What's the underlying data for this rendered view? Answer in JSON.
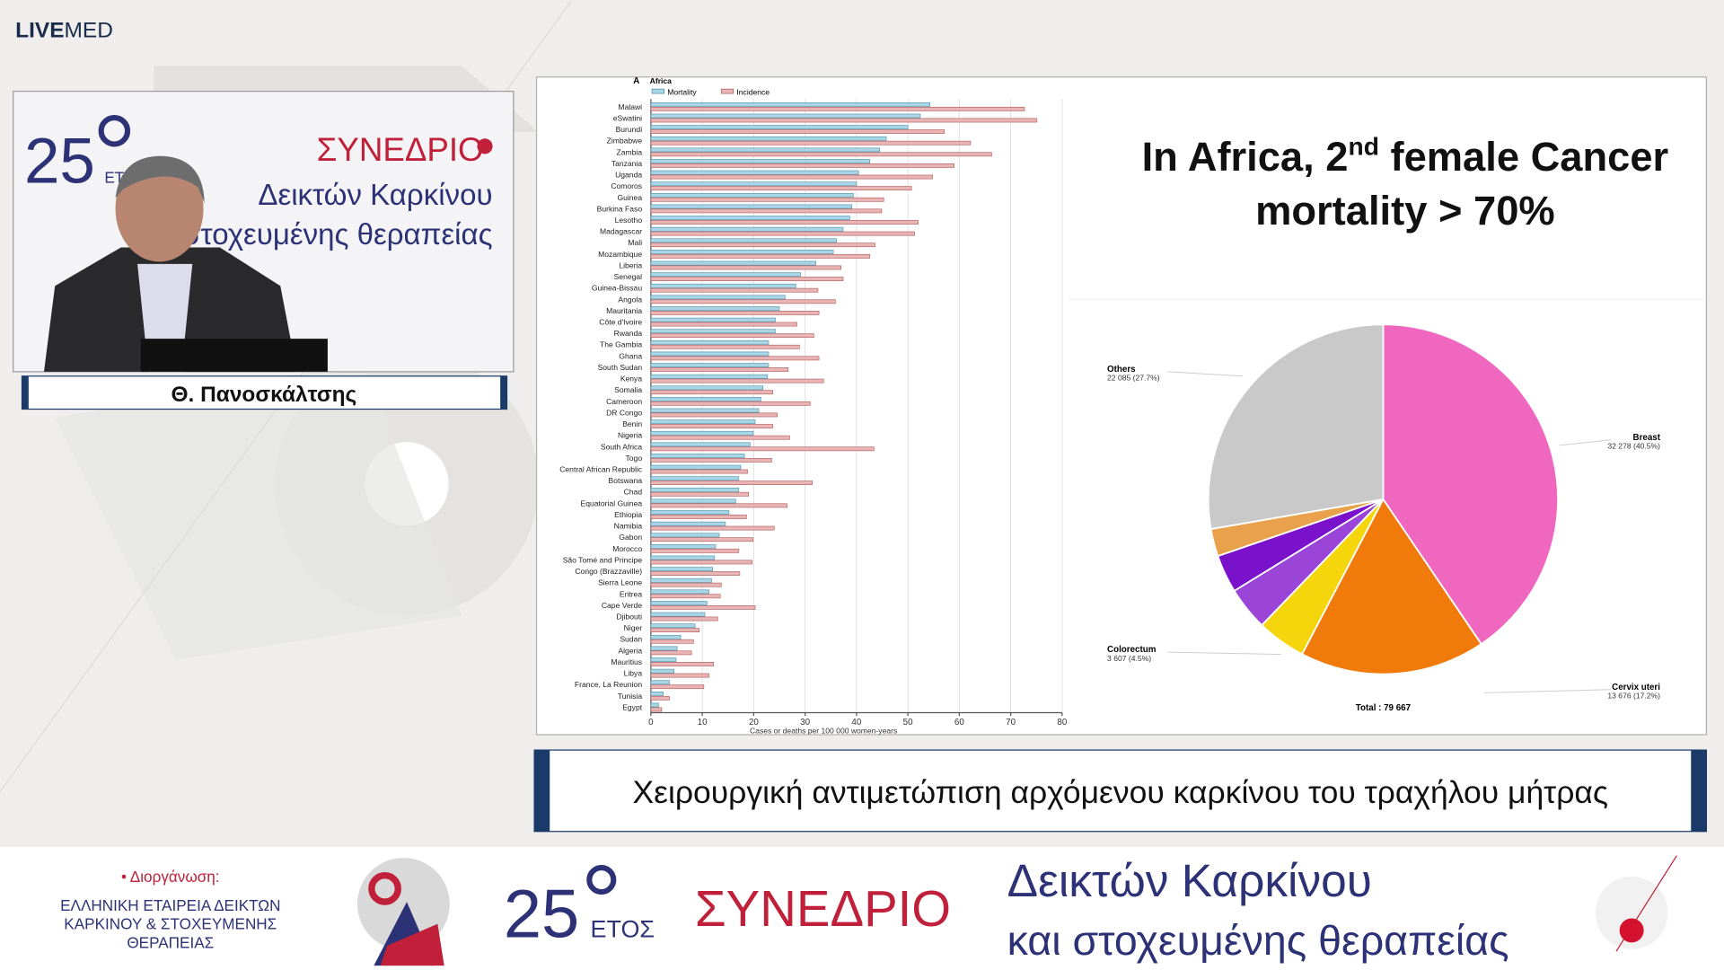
{
  "logo": {
    "bold": "LIVE",
    "light": "MED"
  },
  "speaker": {
    "name": "Θ. Πανοσκάλτσης",
    "backdrop": {
      "years": "25",
      "years_label": "ΕΤΟΣ",
      "event": "ΣΥΝΕΔΡΙΟ",
      "line1": "Δεικτών Καρκίνου",
      "line2": "στοχευμένης θεραπείας"
    }
  },
  "slide": {
    "title_parts": [
      "In Africa, 2",
      "nd",
      " female Cancer"
    ],
    "title_line2": "mortality > 70%"
  },
  "chart_data": [
    {
      "type": "bar",
      "orientation": "horizontal",
      "panel_label": "A",
      "title": "Africa",
      "categories": [
        "Malawi",
        "eSwatini",
        "Burundi",
        "Zimbabwe",
        "Zambia",
        "Tanzania",
        "Uganda",
        "Comoros",
        "Guinea",
        "Burkina Faso",
        "Lesotho",
        "Madagascar",
        "Mali",
        "Mozambique",
        "Liberia",
        "Senegal",
        "Guinea-Bissau",
        "Angola",
        "Mauritania",
        "Côte d'Ivoire",
        "Rwanda",
        "The Gambia",
        "Ghana",
        "South Sudan",
        "Kenya",
        "Somalia",
        "Cameroon",
        "DR Congo",
        "Benin",
        "Nigeria",
        "South Africa",
        "Togo",
        "Central African Republic",
        "Botswana",
        "Chad",
        "Equatorial Guinea",
        "Ethiopia",
        "Namibia",
        "Gabon",
        "Morocco",
        "São Tomé and Principe",
        "Congo (Brazzaville)",
        "Sierra Leone",
        "Eritrea",
        "Cape Verde",
        "Djibouti",
        "Niger",
        "Sudan",
        "Algeria",
        "Mauritius",
        "Libya",
        "France, La Reunion",
        "Tunisia",
        "Egypt"
      ],
      "series": [
        {
          "name": "Mortality",
          "color": "#a9d6e6",
          "stroke": "#4f8fa8",
          "values": [
            54.3,
            52.4,
            50,
            45.8,
            44.5,
            42.6,
            40.4,
            40,
            39.4,
            39.1,
            38.7,
            37.4,
            36.1,
            35.5,
            32.1,
            29.1,
            28.2,
            26.1,
            25,
            24.2,
            24.2,
            22.9,
            22.9,
            22.9,
            22.7,
            21.8,
            21.4,
            21,
            20.3,
            19.9,
            19.3,
            18.2,
            17.5,
            17.1,
            17.1,
            16.5,
            15.2,
            14.5,
            13.3,
            12.6,
            12.4,
            12,
            11.8,
            11.3,
            10.9,
            10.5,
            8.6,
            5.8,
            5.1,
            4.9,
            4.5,
            3.6,
            2.4,
            1.5
          ]
        },
        {
          "name": "Incidence",
          "color": "#e8b4b4",
          "stroke": "#b05a5a",
          "values": [
            72.7,
            75.1,
            57.1,
            62.2,
            66.3,
            59,
            54.8,
            50.7,
            45.3,
            44.9,
            52,
            51.3,
            43.6,
            42.6,
            37,
            37.4,
            32.5,
            35.9,
            32.7,
            28.4,
            31.7,
            28.9,
            32.7,
            26.7,
            33.6,
            23.7,
            31,
            24.6,
            23.7,
            27,
            43.4,
            23.5,
            18.8,
            31.4,
            19,
            26.5,
            18.6,
            24,
            19.9,
            17.1,
            19.7,
            17.3,
            13.7,
            13.5,
            20.3,
            13,
            9.4,
            8.3,
            7.9,
            12.2,
            11.3,
            10.3,
            3.6,
            2.1
          ]
        }
      ],
      "xlabel": "Cases or deaths per 100 000 women-years",
      "xlim": [
        0,
        80
      ],
      "xticks": [
        0,
        10,
        20,
        30,
        40,
        50,
        60,
        70,
        80
      ],
      "grid": true
    },
    {
      "type": "pie",
      "categories": [
        "Breast",
        "Cervix uteri",
        "Colorectum",
        null,
        null,
        null,
        "Others"
      ],
      "values": [
        32278,
        13676,
        3607,
        3200,
        2800,
        2021,
        22085
      ],
      "value_labels": [
        "32 278 (40.5%)",
        "13 676 (17.2%)",
        "3 607 (4.5%)",
        null,
        null,
        null,
        "22 085 (27.7%)"
      ],
      "colors": [
        "#f067c0",
        "#f07a0a",
        "#f5d60c",
        "#9b44d8",
        "#7a12cc",
        "#e9a24b",
        "#c9c9c9"
      ],
      "total_label": "Total : 79 667"
    }
  ],
  "caption": "Χειρουργική αντιμετώπιση αρχόμενου καρκίνου του τραχήλου μήτρας",
  "footer": {
    "organizer_label": "• Διοργάνωση:",
    "organizer_lines": [
      "ΕΛΛΗΝΙΚΗ ΕΤΑΙΡΕΙΑ ΔΕΙΚΤΩΝ",
      "ΚΑΡΚΙΝΟΥ & ΣΤΟΧΕΥΜΕΝΗΣ",
      "ΘΕΡΑΠΕΙΑΣ"
    ],
    "years": "25",
    "years_label": "ΕΤΟΣ",
    "event": "ΣΥΝΕΔΡΙΟ",
    "line1": "Δεικτών Καρκίνου",
    "line2": "και στοχευμένης θεραπείας"
  }
}
